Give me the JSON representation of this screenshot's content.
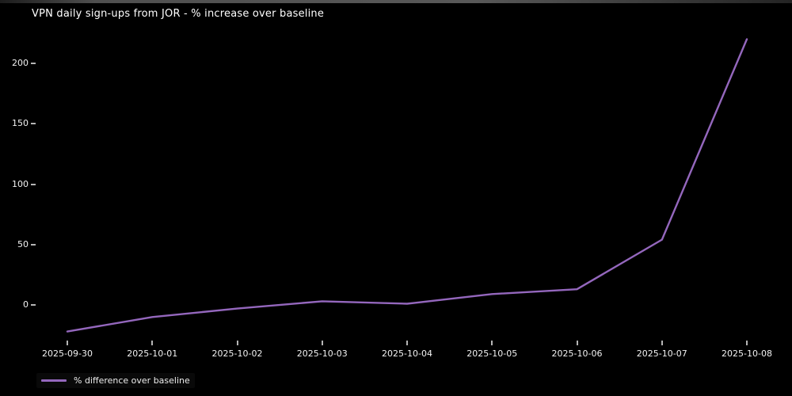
{
  "page": {
    "background": "#000000",
    "text_color": "#ffffff"
  },
  "chart_data": {
    "type": "line",
    "title": "VPN daily sign-ups from JOR - % increase over baseline",
    "x": [
      "2025-09-30",
      "2025-10-01",
      "2025-10-02",
      "2025-10-03",
      "2025-10-04",
      "2025-10-05",
      "2025-10-06",
      "2025-10-07",
      "2025-10-08"
    ],
    "series": [
      {
        "name": "% difference over baseline",
        "values": [
          -22,
          -10,
          -3,
          3,
          1,
          9,
          13,
          54,
          220
        ],
        "color": "#9467bd"
      }
    ],
    "xlabel": "",
    "ylabel": "",
    "yticks": [
      0,
      50,
      100,
      150,
      200
    ],
    "ylim": [
      -30,
      227
    ],
    "grid": false,
    "legend_position": "lower-left",
    "plot_background": "#000000",
    "tick_color": "#b5b5b5"
  }
}
